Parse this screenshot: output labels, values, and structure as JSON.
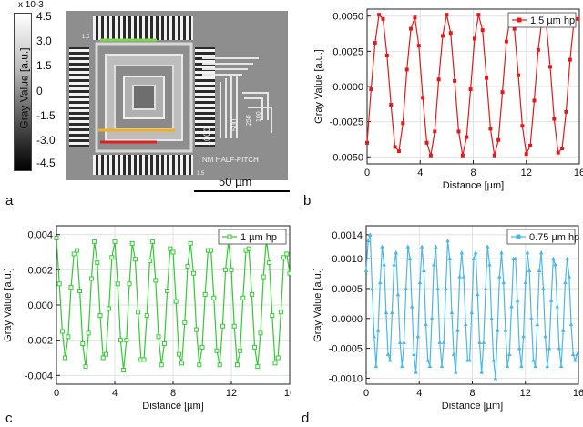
{
  "panel_labels": {
    "a": "a",
    "b": "b",
    "c": "c",
    "d": "d"
  },
  "colorbar": {
    "exponent_label": "x 10-3",
    "ylabel": "Gray Value [a.u.]",
    "ticks": [
      "4.5",
      "3.0",
      "1.5",
      "0",
      "-1.5",
      "-3.0",
      "-4.5"
    ]
  },
  "micrograph": {
    "scale_label": "50 µm",
    "pattern_labels": [
      "1000",
      "500",
      "250",
      "100",
      "NM HALF-PITCH",
      "1.5",
      "1.5"
    ]
  },
  "chart_data": [
    {
      "panel": "b",
      "type": "line",
      "xlabel": "Distance [µm]",
      "ylabel": "Gray Value [a.u.]",
      "xlim": [
        0,
        16
      ],
      "ylim": [
        -0.0055,
        0.0055
      ],
      "xticks": [
        0,
        4,
        8,
        12,
        16
      ],
      "yticks": [
        0.005,
        0.0025,
        0,
        -0.0025,
        -0.005
      ],
      "ytick_labels": [
        "0.0050",
        "0.0025",
        "0.0000",
        "-0.0025",
        "-0.0050"
      ],
      "legend_placement": "top-right",
      "color": "#e31a1c",
      "marker": "square",
      "grid": true,
      "series": [
        {
          "name": "1.5 µm hp",
          "x": [
            0,
            0.3,
            0.6,
            0.9,
            1.2,
            1.5,
            1.8,
            2.1,
            2.4,
            2.7,
            3.0,
            3.3,
            3.6,
            3.9,
            4.2,
            4.5,
            4.8,
            5.1,
            5.4,
            5.7,
            6.0,
            6.3,
            6.6,
            6.9,
            7.2,
            7.5,
            7.8,
            8.1,
            8.4,
            8.7,
            9.0,
            9.3,
            9.6,
            9.9,
            10.2,
            10.5,
            10.8,
            11.1,
            11.4,
            11.7,
            12.0,
            12.3,
            12.6,
            12.9,
            13.2,
            13.5,
            13.8,
            14.1,
            14.4,
            14.7,
            15.0,
            15.3,
            15.6,
            15.9
          ],
          "y": [
            -0.004,
            -0.0002,
            0.0031,
            0.0051,
            0.0048,
            0.0022,
            -0.0013,
            -0.0043,
            -0.0046,
            -0.0026,
            0.0012,
            0.0041,
            0.0049,
            0.0029,
            -0.0008,
            -0.004,
            -0.0049,
            -0.0032,
            0.0005,
            0.0036,
            0.0051,
            0.0038,
            0.0004,
            -0.0032,
            -0.0049,
            -0.0036,
            -0.0002,
            0.0034,
            0.0051,
            0.004,
            0.0006,
            -0.003,
            -0.0049,
            -0.0038,
            -0.0004,
            0.0032,
            0.005,
            0.0041,
            0.0008,
            -0.0028,
            -0.0048,
            -0.0042,
            -0.001,
            0.0026,
            0.0049,
            0.0045,
            0.0014,
            -0.0023,
            -0.0047,
            -0.0044,
            -0.0018,
            0.0019,
            0.0047,
            0.0048
          ]
        }
      ]
    },
    {
      "panel": "c",
      "type": "line",
      "xlabel": "Distance [µm]",
      "ylabel": "Gray Value [a.u.]",
      "xlim": [
        0,
        16
      ],
      "ylim": [
        -0.0045,
        0.0045
      ],
      "xticks": [
        0,
        4,
        8,
        12,
        16
      ],
      "yticks": [
        0.004,
        0.002,
        0,
        -0.002,
        -0.004
      ],
      "ytick_labels": [
        "0.004",
        "0.002",
        "0.000",
        "-0.002",
        "-0.004"
      ],
      "legend_placement": "top-right",
      "color": "#33cc33",
      "marker": "square-open",
      "grid": true,
      "series": [
        {
          "name": "1 µm hp",
          "x": [
            0,
            0.2,
            0.4,
            0.6,
            0.8,
            1.0,
            1.2,
            1.4,
            1.6,
            1.8,
            2.0,
            2.2,
            2.4,
            2.6,
            2.8,
            3.0,
            3.2,
            3.4,
            3.6,
            3.8,
            4.0,
            4.2,
            4.4,
            4.6,
            4.8,
            5.0,
            5.2,
            5.4,
            5.6,
            5.8,
            6.0,
            6.2,
            6.4,
            6.6,
            6.8,
            7.0,
            7.2,
            7.4,
            7.6,
            7.8,
            8.0,
            8.2,
            8.4,
            8.6,
            8.8,
            9.0,
            9.2,
            9.4,
            9.6,
            9.8,
            10.0,
            10.2,
            10.4,
            10.6,
            10.8,
            11.0,
            11.2,
            11.4,
            11.6,
            11.8,
            12.0,
            12.2,
            12.4,
            12.6,
            12.8,
            13.0,
            13.2,
            13.4,
            13.6,
            13.8,
            14.0,
            14.2,
            14.4,
            14.6,
            14.8,
            15.0,
            15.2,
            15.4,
            15.6,
            15.8,
            16.0
          ],
          "y": [
            0.0038,
            0.0012,
            -0.0015,
            -0.003,
            -0.0018,
            0.001,
            0.0029,
            0.0031,
            0.0008,
            -0.0022,
            -0.0035,
            -0.0016,
            0.0015,
            0.0036,
            0.0024,
            -0.0006,
            -0.003,
            -0.0028,
            -0.0002,
            0.0027,
            0.0036,
            0.0012,
            -0.002,
            -0.0037,
            -0.002,
            0.0012,
            0.0035,
            0.0026,
            -0.0004,
            -0.0031,
            -0.0031,
            -0.0006,
            0.0025,
            0.0036,
            0.0014,
            -0.0018,
            -0.0034,
            -0.0022,
            0.0008,
            0.0032,
            0.003,
            0.0002,
            -0.0028,
            -0.0033,
            -0.001,
            0.0022,
            0.0035,
            0.0018,
            -0.0014,
            -0.0034,
            -0.0024,
            0.0006,
            0.0031,
            0.0031,
            0.0004,
            -0.0026,
            -0.0034,
            -0.0012,
            0.002,
            0.0036,
            0.002,
            -0.0012,
            -0.0034,
            -0.0026,
            0.0004,
            0.0031,
            0.0032,
            0.0006,
            -0.0024,
            -0.0035,
            -0.0016,
            0.0016,
            0.0037,
            0.0024,
            -0.0006,
            -0.0033,
            -0.003,
            -0.0004,
            0.0027,
            0.0029,
            0.0018
          ]
        }
      ]
    },
    {
      "panel": "d",
      "type": "line",
      "xlabel": "Distance [µm]",
      "ylabel": "Gray Value [a.u.]",
      "xlim": [
        0,
        16
      ],
      "ylim": [
        -0.0011,
        0.00155
      ],
      "xticks": [
        0,
        4,
        8,
        12,
        16
      ],
      "yticks": [
        0.0014,
        0.001,
        0.0005,
        0,
        -0.0005,
        -0.001
      ],
      "ytick_labels": [
        "0.0014",
        "0.0010",
        "0.0005",
        "0.0000",
        "-0.0005",
        "-0.0010"
      ],
      "legend_placement": "top-right",
      "color": "#4db8e8",
      "marker": "triangle",
      "grid": true,
      "series": [
        {
          "name": "0.75 µm hp",
          "x": [
            0,
            0.15,
            0.3,
            0.45,
            0.6,
            0.75,
            0.9,
            1.05,
            1.2,
            1.35,
            1.5,
            1.65,
            1.8,
            1.95,
            2.1,
            2.25,
            2.4,
            2.55,
            2.7,
            2.85,
            3.0,
            3.15,
            3.3,
            3.45,
            3.6,
            3.75,
            3.9,
            4.05,
            4.2,
            4.35,
            4.5,
            4.65,
            4.8,
            4.95,
            5.1,
            5.25,
            5.4,
            5.55,
            5.7,
            5.85,
            6.0,
            6.15,
            6.3,
            6.45,
            6.6,
            6.75,
            6.9,
            7.05,
            7.2,
            7.35,
            7.5,
            7.65,
            7.8,
            7.95,
            8.1,
            8.25,
            8.4,
            8.55,
            8.7,
            8.85,
            9.0,
            9.15,
            9.3,
            9.45,
            9.6,
            9.75,
            9.9,
            10.05,
            10.2,
            10.35,
            10.5,
            10.65,
            10.8,
            10.95,
            11.1,
            11.25,
            11.4,
            11.55,
            11.7,
            11.85,
            12.0,
            12.15,
            12.3,
            12.45,
            12.6,
            12.75,
            12.9,
            13.05,
            13.2,
            13.35,
            13.5,
            13.65,
            13.8,
            13.95,
            14.1,
            14.25,
            14.4,
            14.55,
            14.7,
            14.85,
            15.0,
            15.15,
            15.3,
            15.45,
            15.6,
            15.75,
            15.9
          ],
          "y": [
            0.0008,
            0.0013,
            0.0014,
            0.0005,
            -0.0003,
            -0.0008,
            -0.0002,
            0.0006,
            0.0012,
            0.0009,
            0.0001,
            -0.0006,
            -0.0007,
            0.0001,
            0.0009,
            0.0011,
            0.0004,
            -0.0004,
            -0.0008,
            -0.0004,
            0.0005,
            0.0012,
            0.001,
            0.0002,
            -0.0006,
            -0.0009,
            -0.0003,
            0.0006,
            0.0012,
            0.0008,
            -0.0001,
            -0.0007,
            -0.0008,
            0.0,
            0.0009,
            0.0012,
            0.0005,
            -0.0004,
            -0.0008,
            -0.0004,
            0.0005,
            0.0013,
            0.001,
            0.0001,
            -0.0006,
            -0.0009,
            -0.0002,
            0.0007,
            0.0011,
            0.0007,
            -0.0001,
            -0.0007,
            -0.0007,
            0.0001,
            0.001,
            0.0011,
            0.0004,
            -0.0004,
            -0.0009,
            -0.0004,
            0.0005,
            0.0012,
            0.0009,
            0.0,
            -0.0007,
            -0.001,
            -0.0002,
            0.0007,
            0.0011,
            0.0006,
            -0.0002,
            -0.0008,
            -0.0006,
            0.0002,
            0.001,
            0.001,
            0.0003,
            -0.0005,
            -0.0008,
            -0.0003,
            0.0006,
            0.0011,
            0.0008,
            0.0,
            -0.0007,
            -0.0008,
            -0.0001,
            0.0008,
            0.0011,
            0.0005,
            -0.0003,
            -0.0008,
            -0.0005,
            0.0003,
            0.001,
            0.0009,
            0.0002,
            -0.0005,
            -0.0008,
            -0.0002,
            0.0006,
            0.001,
            0.0007,
            -0.0001,
            -0.0006,
            -0.0007,
            -0.0006
          ]
        }
      ]
    }
  ]
}
